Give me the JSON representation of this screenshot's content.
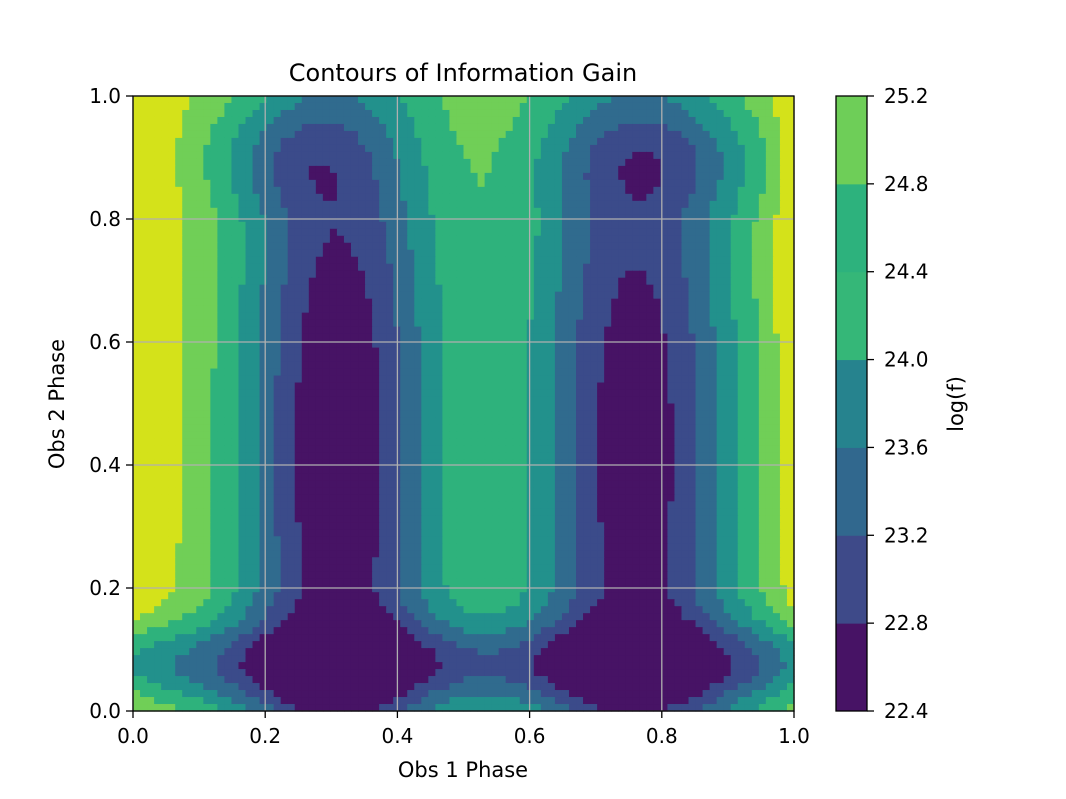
{
  "chart_data": {
    "type": "contour",
    "title": "Contours of Information Gain",
    "xlabel": "Obs 1 Phase",
    "ylabel": "Obs 2 Phase",
    "xlim": [
      0.0,
      1.0
    ],
    "ylim": [
      0.0,
      1.0
    ],
    "grid": true,
    "x_ticks": [
      "0.0",
      "0.2",
      "0.4",
      "0.6",
      "0.8",
      "1.0"
    ],
    "y_ticks": [
      "0.0",
      "0.2",
      "0.4",
      "0.6",
      "0.8",
      "1.0"
    ],
    "colorbar": {
      "label": "log(f)",
      "levels": [
        22.4,
        22.8,
        23.2,
        23.6,
        24.0,
        24.4,
        24.8,
        25.2
      ],
      "tick_labels": [
        "22.4",
        "22.8",
        "23.2",
        "23.6",
        "24.0",
        "24.4",
        "24.8",
        "25.2"
      ],
      "colors": [
        "#471365",
        "#3e4a89",
        "#31688e",
        "#26838e",
        "#35b778",
        "#2db27d",
        "#6ece58",
        "#d0e11c"
      ]
    },
    "level_colors": [
      "#471365",
      "#3b4b8a",
      "#306b8e",
      "#22918c",
      "#2eb27c",
      "#70cf57",
      "#d4e21a"
    ],
    "field": {
      "description": "log(f) as a function of Obs 1 Phase (x) and Obs 2 Phase (y)",
      "x_minima": [
        0.31,
        0.76
      ],
      "y_minimum": 0.42,
      "min_value": 22.5,
      "max_value": 25.0
    }
  }
}
